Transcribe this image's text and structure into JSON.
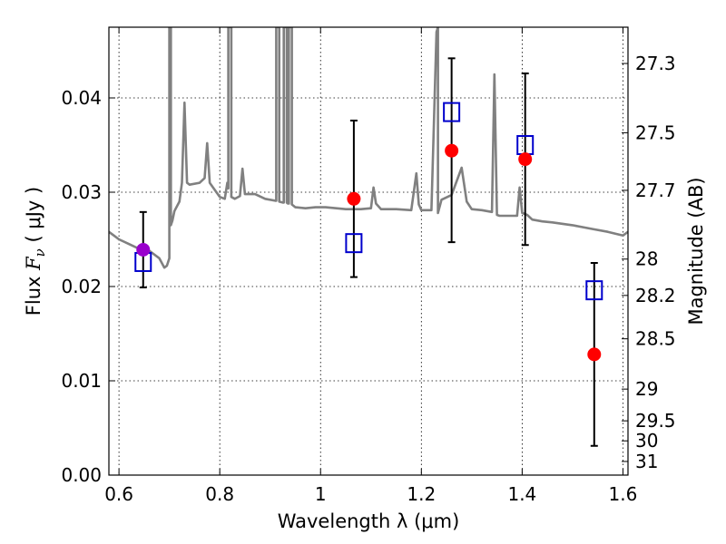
{
  "chart_data": {
    "type": "scatter",
    "title": "",
    "xlabel": "Wavelength  λ (μm)",
    "ylabel": "Flux  Fν  ( μJy )",
    "y2label": "Magnitude (AB)",
    "xlim": [
      0.58,
      1.61
    ],
    "ylim": [
      0.0,
      0.0475
    ],
    "grid": true,
    "xticks": [
      {
        "value": 0.6,
        "label": "0.6"
      },
      {
        "value": 0.8,
        "label": "0.8"
      },
      {
        "value": 1.0,
        "label": "1"
      },
      {
        "value": 1.2,
        "label": "1.2"
      },
      {
        "value": 1.4,
        "label": "1.4"
      },
      {
        "value": 1.6,
        "label": "1.6"
      }
    ],
    "yticks": [
      {
        "value": 0.0,
        "label": "0.00"
      },
      {
        "value": 0.01,
        "label": "0.01"
      },
      {
        "value": 0.02,
        "label": "0.02"
      },
      {
        "value": 0.03,
        "label": "0.03"
      },
      {
        "value": 0.04,
        "label": "0.04"
      }
    ],
    "magnitude_ticks": [
      {
        "value": 27.3,
        "label": "27.3"
      },
      {
        "value": 27.5,
        "label": "27.5"
      },
      {
        "value": 27.7,
        "label": "27.7"
      },
      {
        "value": 28.0,
        "label": "28"
      },
      {
        "value": 28.2,
        "label": "28.2"
      },
      {
        "value": 28.5,
        "label": "28.5"
      },
      {
        "value": 29.0,
        "label": "29"
      },
      {
        "value": 29.5,
        "label": "29.5"
      },
      {
        "value": 30.0,
        "label": "30"
      },
      {
        "value": 31.0,
        "label": "31"
      }
    ],
    "colors": {
      "spectrum": "#808080",
      "observed": "#ff0000",
      "observed_first": "#9900cc",
      "model_box": "#0000cc",
      "error_bar": "#000000"
    },
    "spectrum": {
      "x": [
        0.58,
        0.6,
        0.62,
        0.64,
        0.66,
        0.68,
        0.69,
        0.695,
        0.7,
        0.7,
        0.703,
        0.703,
        0.706,
        0.71,
        0.72,
        0.725,
        0.73,
        0.735,
        0.74,
        0.76,
        0.77,
        0.775,
        0.78,
        0.8,
        0.81,
        0.815,
        0.817,
        0.817,
        0.823,
        0.823,
        0.83,
        0.84,
        0.845,
        0.85,
        0.87,
        0.89,
        0.91,
        0.912,
        0.912,
        0.918,
        0.918,
        0.925,
        0.927,
        0.927,
        0.933,
        0.933,
        0.935,
        0.937,
        0.937,
        0.943,
        0.943,
        0.95,
        0.97,
        0.99,
        1.01,
        1.05,
        1.08,
        1.1,
        1.105,
        1.11,
        1.12,
        1.15,
        1.18,
        1.19,
        1.195,
        1.2,
        1.22,
        1.23,
        1.233,
        1.233,
        1.24,
        1.26,
        1.28,
        1.29,
        1.3,
        1.32,
        1.34,
        1.345,
        1.35,
        1.355,
        1.37,
        1.38,
        1.39,
        1.395,
        1.4,
        1.41,
        1.42,
        1.44,
        1.46,
        1.5,
        1.54,
        1.57,
        1.6,
        1.61
      ],
      "y": [
        0.0258,
        0.025,
        0.0245,
        0.024,
        0.0238,
        0.023,
        0.022,
        0.0222,
        0.023,
        0.0475,
        0.0475,
        0.0265,
        0.027,
        0.028,
        0.029,
        0.031,
        0.0395,
        0.031,
        0.0308,
        0.031,
        0.0315,
        0.0352,
        0.031,
        0.0295,
        0.0293,
        0.031,
        0.0304,
        0.0475,
        0.0475,
        0.0295,
        0.0293,
        0.0296,
        0.0325,
        0.0298,
        0.0298,
        0.0293,
        0.0291,
        0.0291,
        0.0475,
        0.0475,
        0.029,
        0.0289,
        0.0289,
        0.0475,
        0.0475,
        0.0289,
        0.0288,
        0.0288,
        0.0475,
        0.0475,
        0.0287,
        0.0284,
        0.0283,
        0.0284,
        0.0284,
        0.0282,
        0.0282,
        0.0283,
        0.0305,
        0.0288,
        0.0282,
        0.0282,
        0.0281,
        0.032,
        0.0287,
        0.0281,
        0.0281,
        0.047,
        0.0475,
        0.0278,
        0.0292,
        0.0297,
        0.0326,
        0.029,
        0.0282,
        0.0281,
        0.0279,
        0.0425,
        0.0276,
        0.0275,
        0.0275,
        0.0275,
        0.0275,
        0.0305,
        0.0278,
        0.0276,
        0.0271,
        0.0269,
        0.0268,
        0.0265,
        0.0261,
        0.0258,
        0.0254,
        0.0258
      ]
    },
    "observed": [
      {
        "x": 0.648,
        "y": 0.0239,
        "yerr_low": 0.0199,
        "yerr_high": 0.0279
      },
      {
        "x": 1.066,
        "y": 0.0293,
        "yerr_low": 0.021,
        "yerr_high": 0.0376
      },
      {
        "x": 1.26,
        "y": 0.0344,
        "yerr_low": 0.0247,
        "yerr_high": 0.0442
      },
      {
        "x": 1.406,
        "y": 0.0335,
        "yerr_low": 0.0244,
        "yerr_high": 0.0426
      },
      {
        "x": 1.543,
        "y": 0.0128,
        "yerr_low": 0.0031,
        "yerr_high": 0.0225
      }
    ],
    "model": [
      {
        "x": 0.648,
        "y": 0.0226
      },
      {
        "x": 1.066,
        "y": 0.0246
      },
      {
        "x": 1.26,
        "y": 0.0385
      },
      {
        "x": 1.406,
        "y": 0.035
      },
      {
        "x": 1.543,
        "y": 0.0196
      }
    ]
  }
}
